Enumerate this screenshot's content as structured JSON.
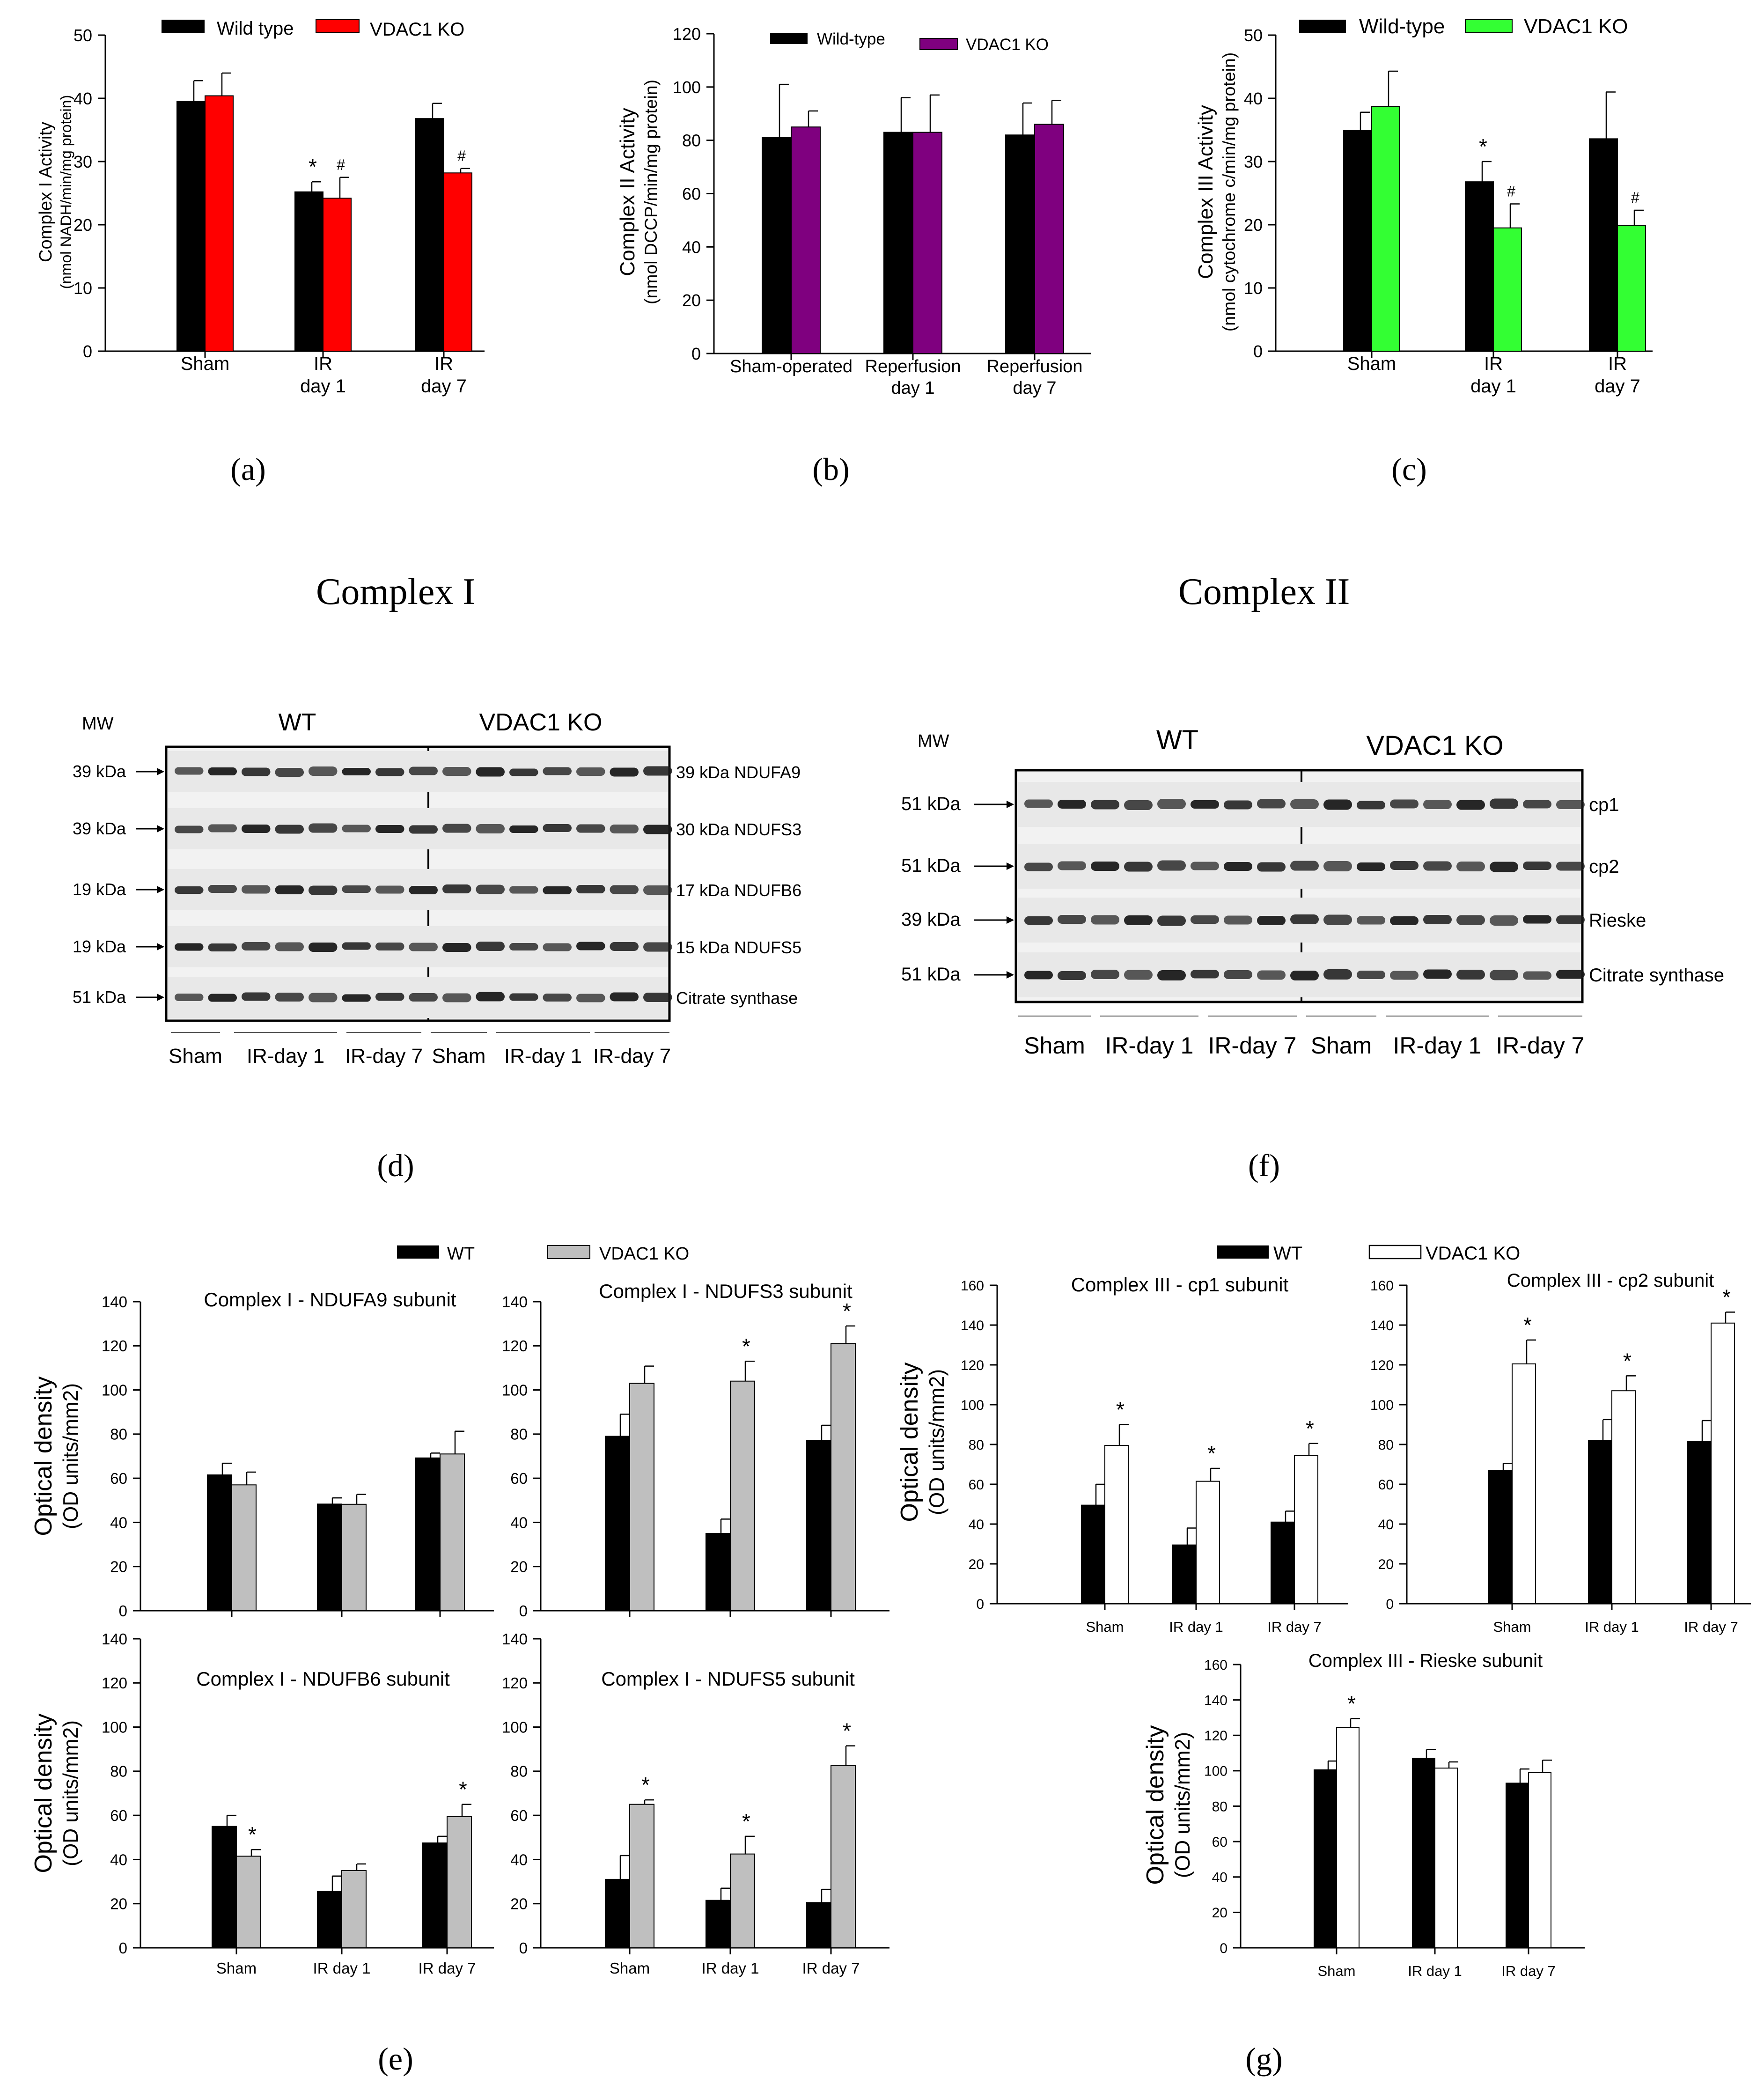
{
  "panel_labels": {
    "a": "(a)",
    "b": "(b)",
    "c": "(c)",
    "d": "(d)",
    "e": "(e)",
    "f": "(f)",
    "g": "(g)"
  },
  "section_titles": {
    "complex_i": "Complex I",
    "complex_ii": "Complex II"
  },
  "colors": {
    "black": "#000000",
    "red": "#ff0000",
    "purple": "#7f007f",
    "green": "#33ff33",
    "gray": "#bfbfbf",
    "white": "#ffffff"
  },
  "blot_d": {
    "mw_title": "MW",
    "group_wt": "WT",
    "group_ko": "VDAC1 KO",
    "mw_labels": [
      "39 kDa",
      "39 kDa",
      "19 kDa",
      "19 kDa",
      "51 kDa"
    ],
    "band_labels": [
      "39 kDa NDUFA9",
      "30 kDa NDUFS3",
      "17 kDa NDUFB6",
      "15 kDa NDUFS5",
      "Citrate synthase"
    ],
    "lane_groups": [
      "Sham",
      "IR-day 1",
      "IR-day 7",
      "Sham",
      "IR-day 1",
      "IR-day 7"
    ]
  },
  "blot_f": {
    "mw_title": "MW",
    "group_wt": "WT",
    "group_ko": "VDAC1 KO",
    "mw_labels": [
      "51 kDa",
      "51 kDa",
      "39 kDa",
      "51 kDa"
    ],
    "band_labels": [
      "cp1",
      "cp2",
      "Rieske",
      "Citrate synthase"
    ],
    "lane_groups": [
      "Sham",
      "IR-day 1",
      "IR-day 7",
      "Sham",
      "IR-day 1",
      "IR-day 7"
    ]
  },
  "legend_e": {
    "wt": "WT",
    "ko": "VDAC1 KO"
  },
  "legend_g": {
    "wt": "WT",
    "ko": "VDAC1 KO"
  },
  "chart_data": [
    {
      "id": "a",
      "type": "bar",
      "categories": [
        "Sham",
        "IR\nday 1",
        "IR\nday 7"
      ],
      "series": [
        {
          "name": "Wild type",
          "color": "#000000",
          "values": [
            39.5,
            25.2,
            36.8
          ],
          "errors": [
            3.3,
            1.6,
            2.4
          ],
          "marks": [
            "",
            "*",
            ""
          ]
        },
        {
          "name": "VDAC1 KO",
          "color": "#ff0000",
          "values": [
            40.4,
            24.2,
            28.2
          ],
          "errors": [
            3.6,
            3.3,
            0.7
          ],
          "marks": [
            "",
            "#",
            "#"
          ]
        }
      ],
      "ylabel": "Complex I Activity\n(nmol NADH/min/mg protein)",
      "ylim": [
        0,
        50
      ],
      "yticks": [
        0,
        10,
        20,
        30,
        40,
        50
      ]
    },
    {
      "id": "b",
      "type": "bar",
      "categories": [
        "Sham-operated",
        "Reperfusion\nday 1",
        "Reperfusion\nday 7"
      ],
      "series": [
        {
          "name": "Wild-type",
          "color": "#000000",
          "values": [
            81,
            83,
            82
          ],
          "errors": [
            20,
            13,
            12
          ],
          "marks": [
            "",
            "",
            ""
          ]
        },
        {
          "name": "VDAC1 KO",
          "color": "#7f007f",
          "values": [
            85,
            83,
            86
          ],
          "errors": [
            6,
            14,
            9
          ],
          "marks": [
            "",
            "",
            ""
          ]
        }
      ],
      "ylabel": "Complex II Activity\n(nmol DCCP/min/mg protein)",
      "ylim": [
        0,
        120
      ],
      "yticks": [
        0,
        20,
        40,
        60,
        80,
        100,
        120
      ]
    },
    {
      "id": "c",
      "type": "bar",
      "categories": [
        "Sham",
        "IR\nday 1",
        "IR\nday 7"
      ],
      "series": [
        {
          "name": "Wild-type",
          "color": "#000000",
          "values": [
            34.9,
            26.8,
            33.6
          ],
          "errors": [
            2.9,
            3.2,
            7.4
          ],
          "marks": [
            "",
            "*",
            ""
          ]
        },
        {
          "name": "VDAC1 KO",
          "color": "#33ff33",
          "values": [
            38.7,
            19.5,
            19.9
          ],
          "errors": [
            5.6,
            3.8,
            2.4
          ],
          "marks": [
            "",
            "#",
            "#"
          ]
        }
      ],
      "ylabel": "Complex III Activity\n(nmol cytochrome c/min/mg protein)",
      "ylim": [
        0,
        50
      ],
      "yticks": [
        0,
        10,
        20,
        30,
        40,
        50
      ]
    },
    {
      "id": "e1",
      "type": "bar",
      "title": "Complex I - NDUFA9 subunit",
      "categories": [
        "Sham",
        "IR day 1",
        "IR day 7"
      ],
      "series": [
        {
          "name": "WT",
          "color": "#000000",
          "values": [
            61.5,
            48.3,
            69.2
          ],
          "errors": [
            5.3,
            2.8,
            2.2
          ],
          "marks": [
            "",
            "",
            ""
          ]
        },
        {
          "name": "VDAC1 KO",
          "color": "#bfbfbf",
          "values": [
            57.0,
            48.2,
            71.0
          ],
          "errors": [
            5.8,
            4.5,
            10.3
          ],
          "marks": [
            "",
            "",
            ""
          ]
        }
      ],
      "ylabel": "Optical density\n(OD units/mm2)",
      "ylim": [
        0,
        140
      ],
      "yticks": [
        0,
        20,
        40,
        60,
        80,
        100,
        120,
        140
      ]
    },
    {
      "id": "e2",
      "type": "bar",
      "title": "Complex I - NDUFS3 subunit",
      "categories": [
        "Sham",
        "IR day 1",
        "IR day 7"
      ],
      "series": [
        {
          "name": "WT",
          "color": "#000000",
          "values": [
            79.0,
            35.0,
            77.0
          ],
          "errors": [
            10.0,
            6.5,
            7.0
          ],
          "marks": [
            "",
            "",
            ""
          ]
        },
        {
          "name": "VDAC1 KO",
          "color": "#bfbfbf",
          "values": [
            103.0,
            104.0,
            121.0
          ],
          "errors": [
            7.8,
            9.0,
            8.0
          ],
          "marks": [
            "",
            "*",
            "*"
          ]
        }
      ],
      "ylabel": "",
      "ylim": [
        0,
        140
      ],
      "yticks": [
        0,
        20,
        40,
        60,
        80,
        100,
        120,
        140
      ]
    },
    {
      "id": "e3",
      "type": "bar",
      "title": "Complex I - NDUFB6 subunit",
      "categories": [
        "Sham",
        "IR day 1",
        "IR day 7"
      ],
      "series": [
        {
          "name": "WT",
          "color": "#000000",
          "values": [
            55.0,
            25.5,
            47.5
          ],
          "errors": [
            5.0,
            7.0,
            3.0
          ],
          "marks": [
            "",
            "",
            ""
          ]
        },
        {
          "name": "VDAC1 KO",
          "color": "#bfbfbf",
          "values": [
            41.5,
            35.0,
            59.5
          ],
          "errors": [
            3.0,
            3.0,
            5.5
          ],
          "marks": [
            "*",
            "",
            "*"
          ]
        }
      ],
      "ylabel": "Optical density\n(OD units/mm2)",
      "xlabels_visible": true,
      "ylim": [
        0,
        140
      ],
      "yticks": [
        0,
        20,
        40,
        60,
        80,
        100,
        120,
        140
      ]
    },
    {
      "id": "e4",
      "type": "bar",
      "title": "Complex I - NDUFS5 subunit",
      "categories": [
        "Sham",
        "IR day 1",
        "IR day 7"
      ],
      "series": [
        {
          "name": "WT",
          "color": "#000000",
          "values": [
            31.0,
            21.5,
            20.5
          ],
          "errors": [
            10.8,
            5.5,
            6.0
          ],
          "marks": [
            "",
            "",
            ""
          ]
        },
        {
          "name": "VDAC1 KO",
          "color": "#bfbfbf",
          "values": [
            65.0,
            42.5,
            82.5
          ],
          "errors": [
            2.0,
            8.0,
            9.0
          ],
          "marks": [
            "*",
            "*",
            "*"
          ]
        }
      ],
      "ylabel": "",
      "xlabels_visible": true,
      "ylim": [
        0,
        140
      ],
      "yticks": [
        0,
        20,
        40,
        60,
        80,
        100,
        120,
        140
      ]
    },
    {
      "id": "g1",
      "type": "bar",
      "title": "Complex III - cp1 subunit",
      "categories": [
        "Sham",
        "IR day 1",
        "IR day 7"
      ],
      "series": [
        {
          "name": "WT",
          "color": "#000000",
          "values": [
            49.5,
            29.5,
            41.0
          ],
          "errors": [
            10.5,
            8.5,
            5.5
          ],
          "marks": [
            "",
            "",
            ""
          ]
        },
        {
          "name": "VDAC1 KO",
          "color": "#ffffff",
          "values": [
            79.5,
            61.5,
            74.5
          ],
          "errors": [
            10.5,
            6.5,
            6.0
          ],
          "marks": [
            "*",
            "*",
            "*"
          ]
        }
      ],
      "ylabel": "Optical density\n(OD units/mm2)",
      "ylim": [
        0,
        160
      ],
      "yticks": [
        0,
        20,
        40,
        60,
        80,
        100,
        120,
        140,
        160
      ]
    },
    {
      "id": "g2",
      "type": "bar",
      "title": "Complex III - cp2 subunit",
      "categories": [
        "Sham",
        "IR day 1",
        "IR day 7"
      ],
      "series": [
        {
          "name": "WT",
          "color": "#000000",
          "values": [
            67.0,
            82.0,
            81.5
          ],
          "errors": [
            3.5,
            10.5,
            10.5
          ],
          "marks": [
            "",
            "",
            ""
          ]
        },
        {
          "name": "VDAC1 KO",
          "color": "#ffffff",
          "values": [
            120.5,
            107.0,
            141.0
          ],
          "errors": [
            12.0,
            7.5,
            5.5
          ],
          "marks": [
            "*",
            "*",
            "*"
          ]
        }
      ],
      "ylabel": "",
      "ylim": [
        0,
        160
      ],
      "yticks": [
        0,
        20,
        40,
        60,
        80,
        100,
        120,
        140,
        160
      ]
    },
    {
      "id": "g3",
      "type": "bar",
      "title": "Complex III - Rieske subunit",
      "categories": [
        "Sham",
        "IR day 1",
        "IR day 7"
      ],
      "series": [
        {
          "name": "WT",
          "color": "#000000",
          "values": [
            100.5,
            107.0,
            93.0
          ],
          "errors": [
            5.0,
            5.0,
            8.0
          ],
          "marks": [
            "",
            "",
            ""
          ]
        },
        {
          "name": "VDAC1 KO",
          "color": "#ffffff",
          "values": [
            124.5,
            101.5,
            99.0
          ],
          "errors": [
            5.0,
            3.5,
            7.0
          ],
          "marks": [
            "*",
            "",
            ""
          ]
        }
      ],
      "ylabel": "Optical density\n(OD units/mm2)",
      "ylim": [
        0,
        160
      ],
      "yticks": [
        0,
        20,
        40,
        60,
        80,
        100,
        120,
        140,
        160
      ]
    }
  ]
}
